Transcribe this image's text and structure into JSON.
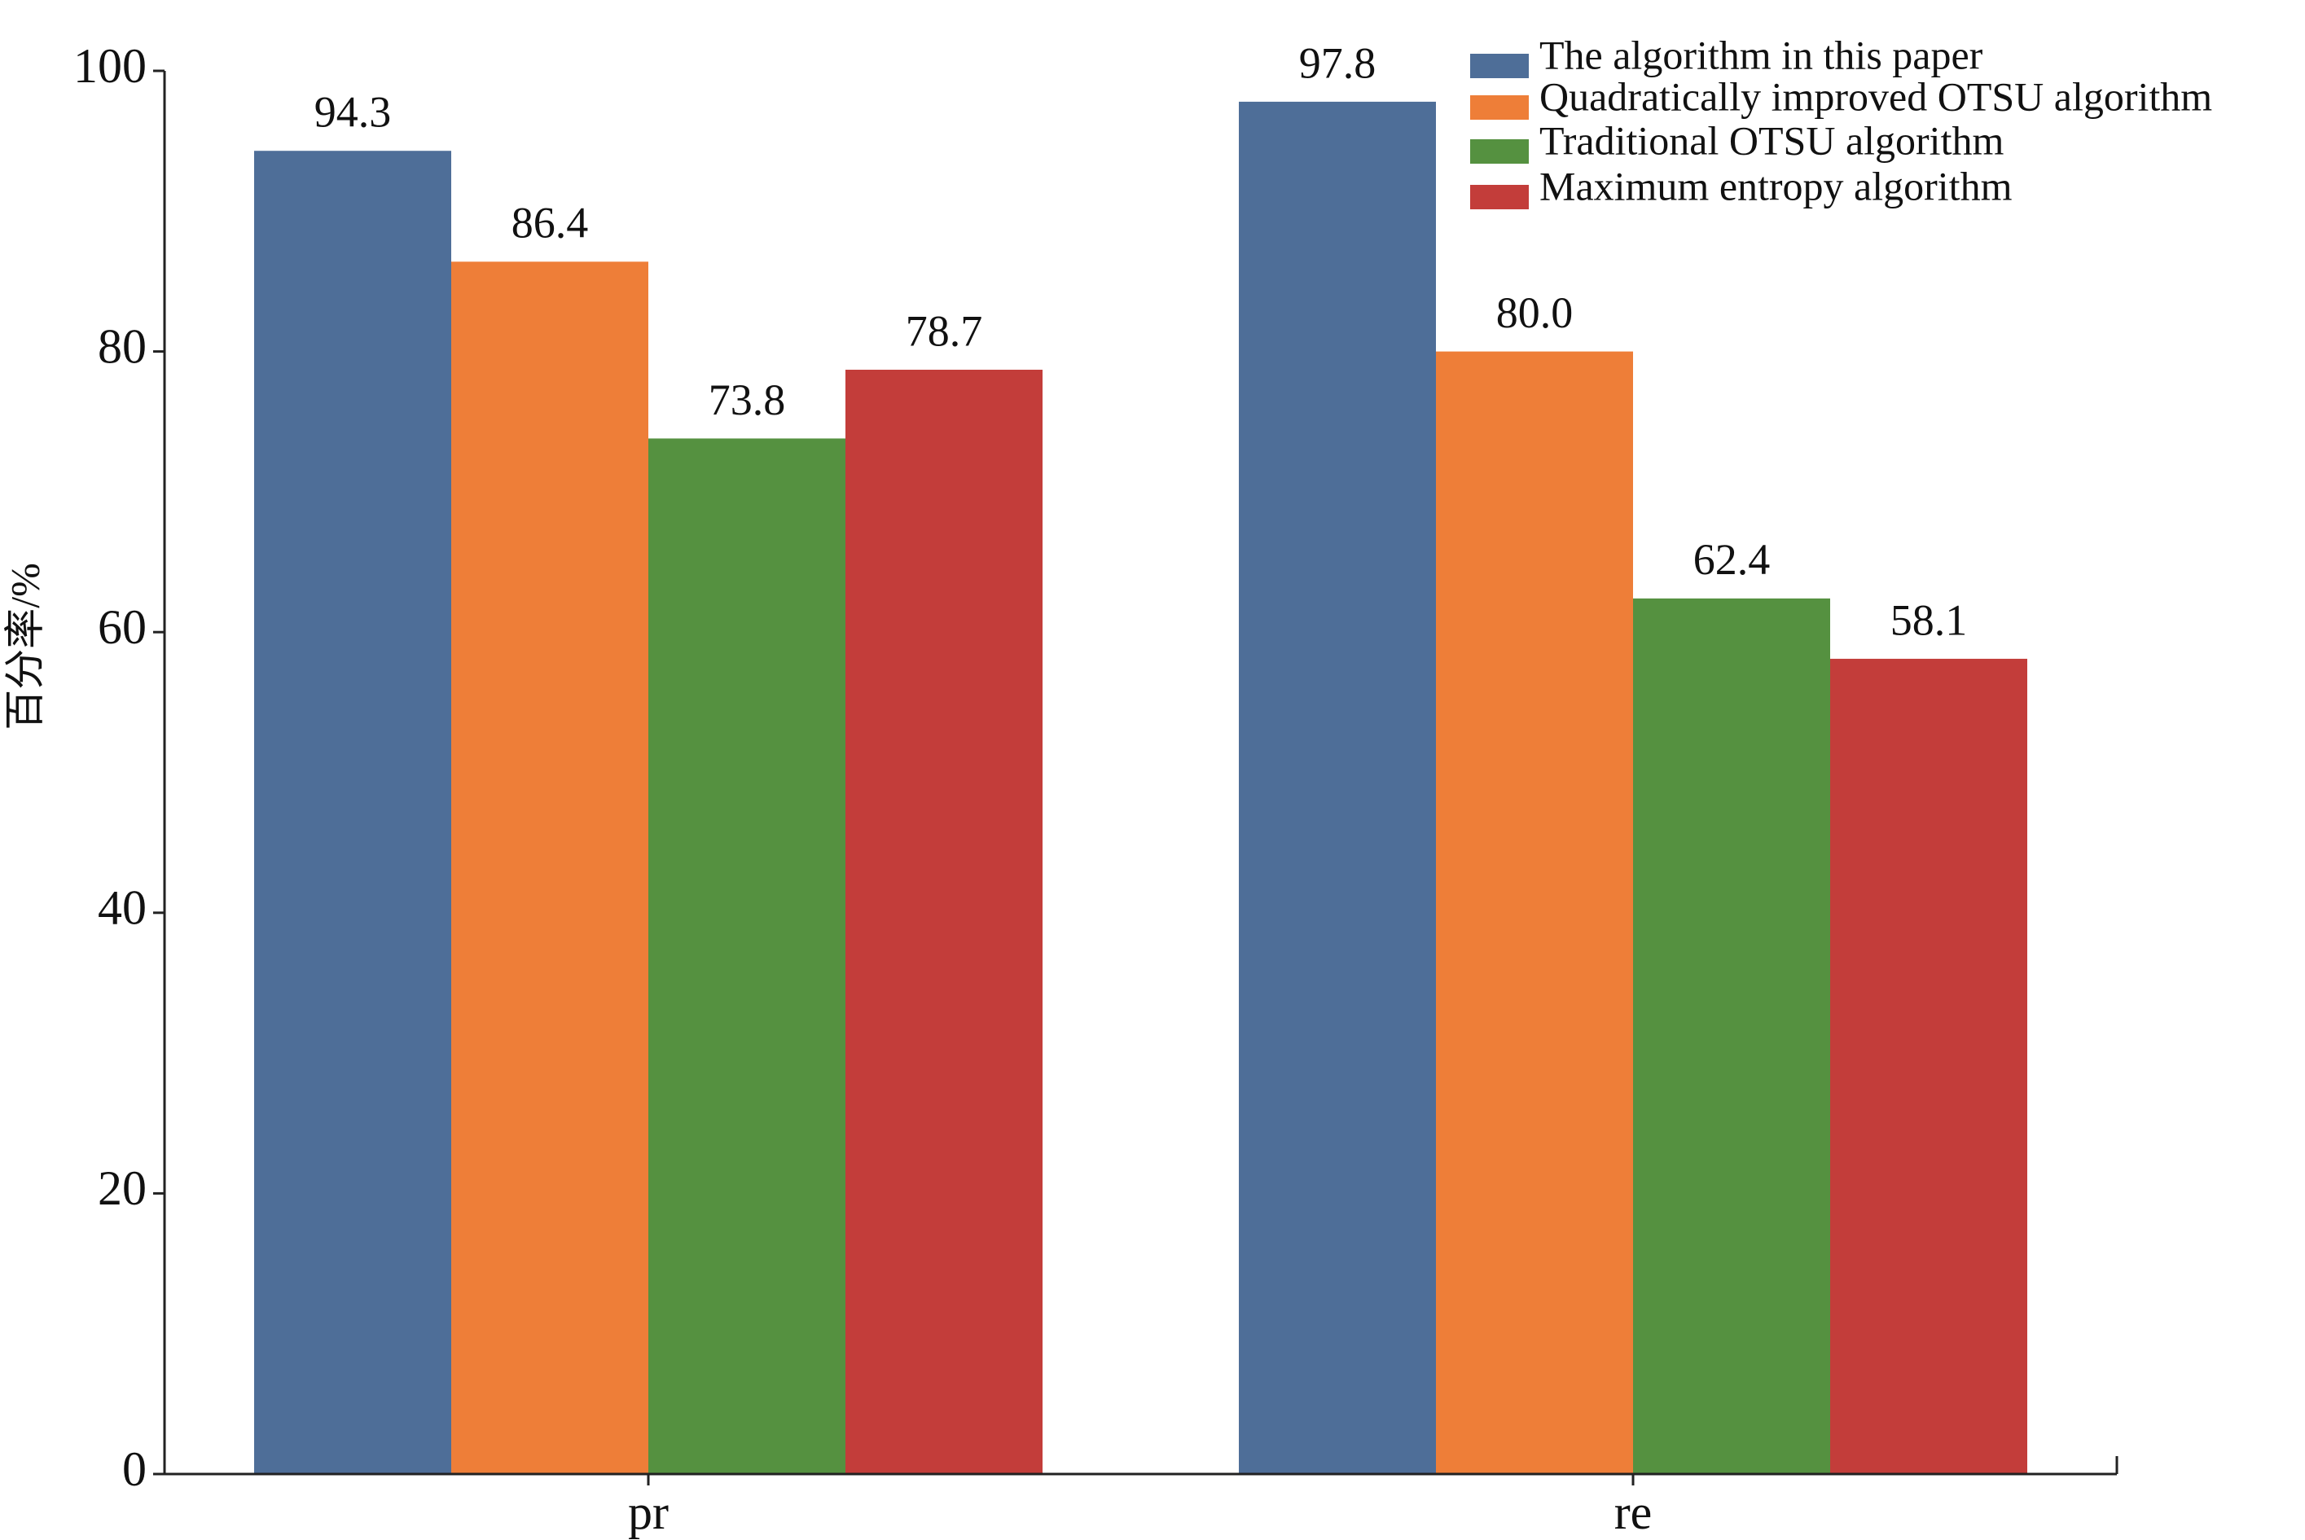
{
  "chart_data": {
    "type": "bar",
    "y_label": "百分率/%",
    "categories": [
      "pr",
      "re"
    ],
    "series": [
      {
        "name": "The algorithm in this paper",
        "color": "#4e6e98",
        "values": [
          94.3,
          97.8
        ],
        "value_labels": [
          "94.3",
          "97.8"
        ]
      },
      {
        "name": "Quadratically improved OTSU algorithm",
        "color": "#ee7e38",
        "values": [
          86.4,
          80.0
        ],
        "value_labels": [
          "86.4",
          "80.0"
        ]
      },
      {
        "name": "Traditional OTSU algorithm",
        "color": "#559140",
        "values": [
          73.8,
          62.4
        ],
        "value_labels": [
          "73.8",
          "62.4"
        ]
      },
      {
        "name": "Maximum entropy algorithm",
        "color": "#c33d3a",
        "values": [
          78.7,
          58.1
        ],
        "value_labels": [
          "78.7",
          "58.1"
        ]
      }
    ],
    "ylim": [
      0,
      100
    ],
    "yticks": [
      0,
      20,
      40,
      60,
      80,
      100
    ],
    "grid": false,
    "legend": "upper right"
  }
}
